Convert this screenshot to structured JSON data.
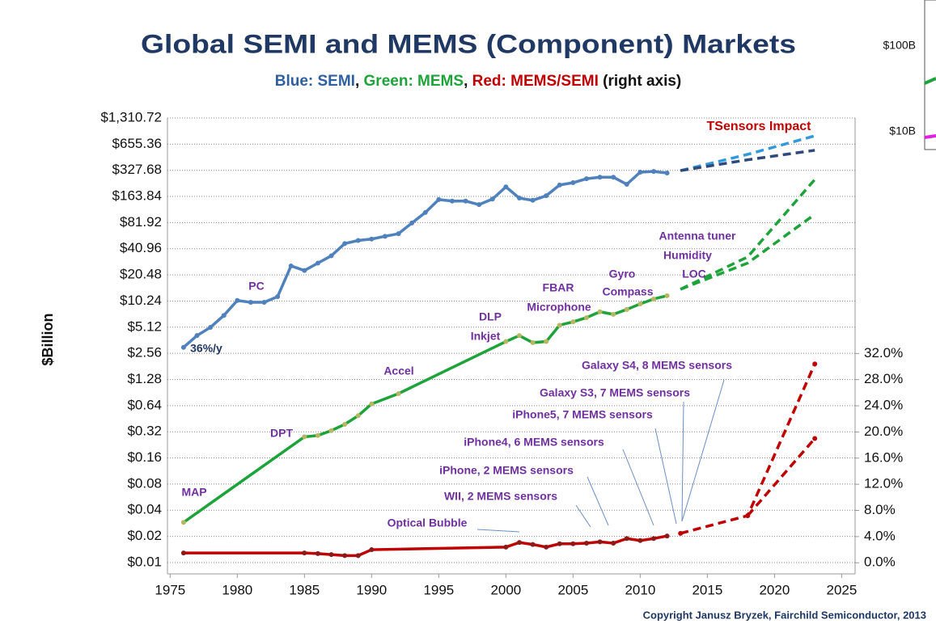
{
  "chart_data": {
    "type": "line",
    "title": "Global SEMI and MEMS (Component) Markets",
    "subtitle_parts": [
      {
        "text": "Blue: SEMI",
        "color": "#2e5fa0"
      },
      {
        "text": ", ",
        "color": "#111111"
      },
      {
        "text": "Green: MEMS",
        "color": "#1ea33a"
      },
      {
        "text": ", ",
        "color": "#111111"
      },
      {
        "text": "Red: MEMS/SEMI",
        "color": "#c00000"
      },
      {
        "text": " (right axis)",
        "color": "#111111"
      }
    ],
    "y_label": "$Billion",
    "copyright": "Copyright Janusz Bryzek, Fairchild Semiconductor, 2013",
    "log_scale_y": true,
    "log_base": 2,
    "grid": true,
    "xlim": [
      1974.8,
      2026
    ],
    "xticks": [
      1975,
      1980,
      1985,
      1990,
      1995,
      2000,
      2005,
      2010,
      2015,
      2020,
      2025
    ],
    "ylim": [
      0.0074,
      1310.72
    ],
    "yticks": [
      {
        "value": 0.01,
        "label": "$0.01"
      },
      {
        "value": 0.02,
        "label": "$0.02"
      },
      {
        "value": 0.04,
        "label": "$0.04"
      },
      {
        "value": 0.08,
        "label": "$0.08"
      },
      {
        "value": 0.16,
        "label": "$0.16"
      },
      {
        "value": 0.32,
        "label": "$0.32"
      },
      {
        "value": 0.64,
        "label": "$0.64"
      },
      {
        "value": 1.28,
        "label": "$1.28"
      },
      {
        "value": 2.56,
        "label": "$2.56"
      },
      {
        "value": 5.12,
        "label": "$5.12"
      },
      {
        "value": 10.24,
        "label": "$10.24"
      },
      {
        "value": 20.48,
        "label": "$20.48"
      },
      {
        "value": 40.96,
        "label": "$40.96"
      },
      {
        "value": 81.92,
        "label": "$81.92"
      },
      {
        "value": 163.84,
        "label": "$163.84"
      },
      {
        "value": 327.68,
        "label": "$327.68"
      },
      {
        "value": 655.36,
        "label": "$655.36"
      },
      {
        "value": 1310.72,
        "label": "$1,310.72"
      }
    ],
    "y2lim": [
      -1.7,
      68
    ],
    "y2ticks": [
      {
        "value": 0,
        "label": "0.0%"
      },
      {
        "value": 4,
        "label": "4.0%"
      },
      {
        "value": 8,
        "label": "8.0%"
      },
      {
        "value": 12,
        "label": "12.0%"
      },
      {
        "value": 16,
        "label": "16.0%"
      },
      {
        "value": 20,
        "label": "20.0%"
      },
      {
        "value": 24,
        "label": "24.0%"
      },
      {
        "value": 28,
        "label": "28.0%"
      },
      {
        "value": 32,
        "label": "32.0%"
      }
    ],
    "series": [
      {
        "color": "#4f81bd",
        "marker_color": "#4f81bd",
        "dashed": false,
        "markers": true,
        "x": [
          1976,
          1977,
          1978,
          1979,
          1980,
          1981,
          1982,
          1983,
          1984,
          1985,
          1986,
          1987,
          1988,
          1989,
          1990,
          1991,
          1992,
          1993,
          1994,
          1995,
          1996,
          1997,
          1998,
          1999,
          2000,
          2001,
          2002,
          2003,
          2004,
          2005,
          2006,
          2007,
          2008,
          2009,
          2010,
          2011,
          2012
        ],
        "values": [
          3.0,
          4.1,
          5.1,
          7.0,
          10.4,
          9.9,
          9.9,
          11.5,
          26,
          23,
          28,
          34,
          47,
          51,
          53,
          57,
          61,
          81,
          107,
          151,
          145,
          145,
          132,
          153,
          211,
          157,
          148,
          167,
          222,
          236,
          262,
          273,
          273,
          226,
          312,
          318,
          305
        ]
      },
      {
        "color": "#3399dd",
        "dashed": true,
        "markers": false,
        "x": [
          2013,
          2018,
          2023
        ],
        "values": [
          325,
          500,
          817
        ]
      },
      {
        "color": "#2e4a7a",
        "dashed": true,
        "markers": false,
        "x": [
          2013,
          2018,
          2023
        ],
        "values": [
          325,
          433,
          557
        ]
      },
      {
        "color": "#1ea33a",
        "marker_color": "#b5b860",
        "dashed": false,
        "markers": true,
        "x": [
          1976,
          1985,
          1986,
          1987,
          1988,
          1989,
          1990,
          1992,
          2000,
          2001,
          2002,
          2003,
          2004,
          2005,
          2006,
          2007,
          2008,
          2009,
          2010,
          2011,
          2012
        ],
        "values": [
          0.029,
          0.28,
          0.29,
          0.33,
          0.39,
          0.49,
          0.67,
          0.88,
          3.5,
          4.1,
          3.4,
          3.5,
          5.4,
          5.9,
          6.6,
          7.7,
          7.2,
          8.2,
          9.5,
          10.8,
          11.8
        ]
      },
      {
        "color": "#1ea33a",
        "dashed": true,
        "markers": false,
        "x": [
          2013,
          2018,
          2023
        ],
        "values": [
          14,
          33,
          257
        ]
      },
      {
        "color": "#1ea33a",
        "dashed": true,
        "markers": false,
        "x": [
          2013,
          2018,
          2023
        ],
        "values": [
          14,
          28,
          102
        ]
      },
      {
        "color": "#c00000",
        "marker_color": "#8b1a1a",
        "dashed": false,
        "markers": true,
        "axis": "y2",
        "x": [
          1976,
          1985,
          1986,
          1987,
          1988,
          1989,
          1990,
          2000,
          2001,
          2002,
          2003,
          2004,
          2005,
          2006,
          2007,
          2008,
          2009,
          2010,
          2011,
          2012
        ],
        "values": [
          1.5,
          1.5,
          1.4,
          1.25,
          1.1,
          1.1,
          2.0,
          2.4,
          3.1,
          2.8,
          2.4,
          2.9,
          2.9,
          3.0,
          3.2,
          3.0,
          3.7,
          3.4,
          3.7,
          4.1
        ]
      },
      {
        "color": "#c00000",
        "marker_color": "#c00000",
        "dashed": true,
        "markers": true,
        "axis": "y2",
        "x": [
          2013,
          2018,
          2023
        ],
        "values": [
          4.5,
          7.2,
          30.4
        ]
      },
      {
        "color": "#c00000",
        "marker_color": "#c00000",
        "dashed": true,
        "markers": true,
        "axis": "y2",
        "x": [
          2018,
          2023
        ],
        "values": [
          7.2,
          19.0
        ]
      }
    ],
    "annotations": [
      {
        "text": "36%/y",
        "color": "#1f3864"
      },
      {
        "text": "PC",
        "color": "#7030a0"
      },
      {
        "text": "MAP",
        "color": "#7030a0"
      },
      {
        "text": "DPT",
        "color": "#7030a0"
      },
      {
        "text": "Accel",
        "color": "#7030a0"
      },
      {
        "text": "DLP",
        "color": "#7030a0"
      },
      {
        "text": "Inkjet",
        "color": "#7030a0"
      },
      {
        "text": "FBAR",
        "color": "#7030a0"
      },
      {
        "text": "Microphone",
        "color": "#7030a0"
      },
      {
        "text": "Gyro",
        "color": "#7030a0"
      },
      {
        "text": "Compass",
        "color": "#7030a0"
      },
      {
        "text": "Antenna tuner",
        "color": "#7030a0"
      },
      {
        "text": "Humidity",
        "color": "#7030a0"
      },
      {
        "text": "LOC",
        "color": "#7030a0"
      },
      {
        "text": "TSensors Impact",
        "color": "#c00000"
      },
      {
        "text": "Galaxy S4, 8 MEMS sensors",
        "color": "#7030a0"
      },
      {
        "text": "Galaxy S3, 7 MEMS sensors",
        "color": "#7030a0"
      },
      {
        "text": "iPhone5, 7 MEMS sensors",
        "color": "#7030a0"
      },
      {
        "text": "iPhone4, 6 MEMS sensors",
        "color": "#7030a0"
      },
      {
        "text": "iPhone, 2 MEMS sensors",
        "color": "#7030a0"
      },
      {
        "text": "WII, 2 MEMS sensors",
        "color": "#7030a0"
      },
      {
        "text": "Optical Bubble",
        "color": "#7030a0"
      }
    ],
    "inset": {
      "labels": [
        "$100B",
        "$10B"
      ]
    }
  }
}
